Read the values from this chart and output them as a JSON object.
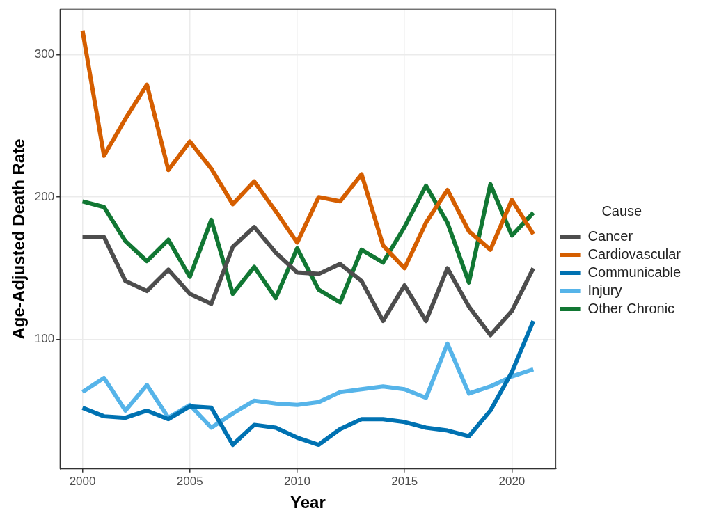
{
  "chart_data": {
    "type": "line",
    "xlabel": "Year",
    "ylabel": "Age-Adjusted Death Rate",
    "legend_title": "Cause",
    "legend": "right",
    "grid": true,
    "line_style": "solid",
    "marker": "none",
    "x": [
      2000,
      2001,
      2002,
      2003,
      2004,
      2005,
      2006,
      2007,
      2008,
      2009,
      2010,
      2011,
      2012,
      2013,
      2014,
      2015,
      2016,
      2017,
      2018,
      2019,
      2020,
      2021
    ],
    "xlim": [
      1998.95,
      2022.05
    ],
    "xticks": [
      2000,
      2005,
      2010,
      2015,
      2020
    ],
    "ylim": [
      9,
      332
    ],
    "yticks": [
      100,
      200,
      300
    ],
    "series": [
      {
        "name": "Cancer",
        "color": "#4d4d4d",
        "values": [
          172,
          172,
          141,
          134,
          149,
          132,
          125,
          165,
          179,
          161,
          147,
          146,
          153,
          141,
          113,
          138,
          113,
          150,
          123,
          103,
          120,
          150
        ]
      },
      {
        "name": "Cardiovascular",
        "color": "#d55e00",
        "values": [
          317,
          229,
          255,
          279,
          219,
          239,
          220,
          195,
          211,
          190,
          168,
          200,
          197,
          216,
          166,
          150,
          182,
          205,
          176,
          163,
          198,
          174
        ]
      },
      {
        "name": "Communicable",
        "color": "#0072b2",
        "values": [
          52,
          46,
          45,
          50,
          44,
          53,
          52,
          26,
          40,
          38,
          31,
          26,
          37,
          44,
          44,
          42,
          38,
          36,
          32,
          50,
          77,
          113
        ]
      },
      {
        "name": "Injury",
        "color": "#56b4e9",
        "values": [
          63,
          73,
          50,
          68,
          45,
          54,
          38,
          48,
          57,
          55,
          54,
          56,
          63,
          65,
          67,
          65,
          59,
          97,
          62,
          67,
          74,
          79
        ]
      },
      {
        "name": "Other Chronic",
        "color": "#117733",
        "values": [
          197,
          193,
          169,
          155,
          170,
          144,
          184,
          132,
          151,
          129,
          164,
          135,
          126,
          163,
          154,
          179,
          208,
          182,
          140,
          209,
          173,
          189
        ]
      }
    ]
  }
}
